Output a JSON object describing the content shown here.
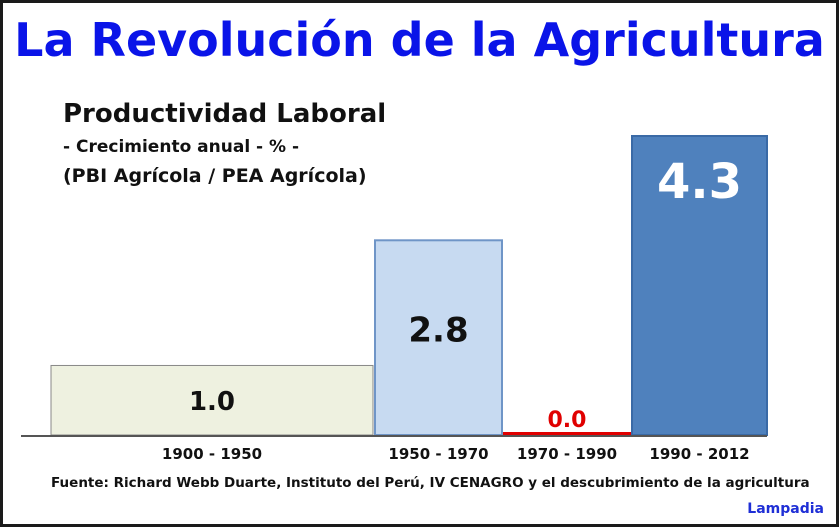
{
  "header": {
    "title": "La Revolución de la Agricultura"
  },
  "chart_data": {
    "type": "bar",
    "title": "Productividad Laboral",
    "subtitle": "- Crecimiento anual - % -",
    "subtitle2": "(PBI Agrícola / PEA  Agrícola)",
    "categories": [
      "1900 - 1950",
      "1950 - 1970",
      "1970 - 1990",
      "1990 - 2012"
    ],
    "values": [
      1.0,
      2.8,
      0.0,
      4.3
    ],
    "labels": [
      "1.0",
      "2.8",
      "0.0",
      "4.3"
    ],
    "bar_colors": [
      "#eef1e0",
      "#c7daf1",
      "#e00000",
      "#4f81bd"
    ],
    "label_colors": [
      "#111111",
      "#111111",
      "#e00000",
      "#ffffff"
    ],
    "ylim": [
      0,
      4.3
    ],
    "grid": false,
    "legend": "none"
  },
  "footer": {
    "source": "Fuente: Richard Webb Duarte, Instituto del Perú, IV CENAGRO y el descubrimiento de la agricultura",
    "brand": "Lampadia"
  }
}
